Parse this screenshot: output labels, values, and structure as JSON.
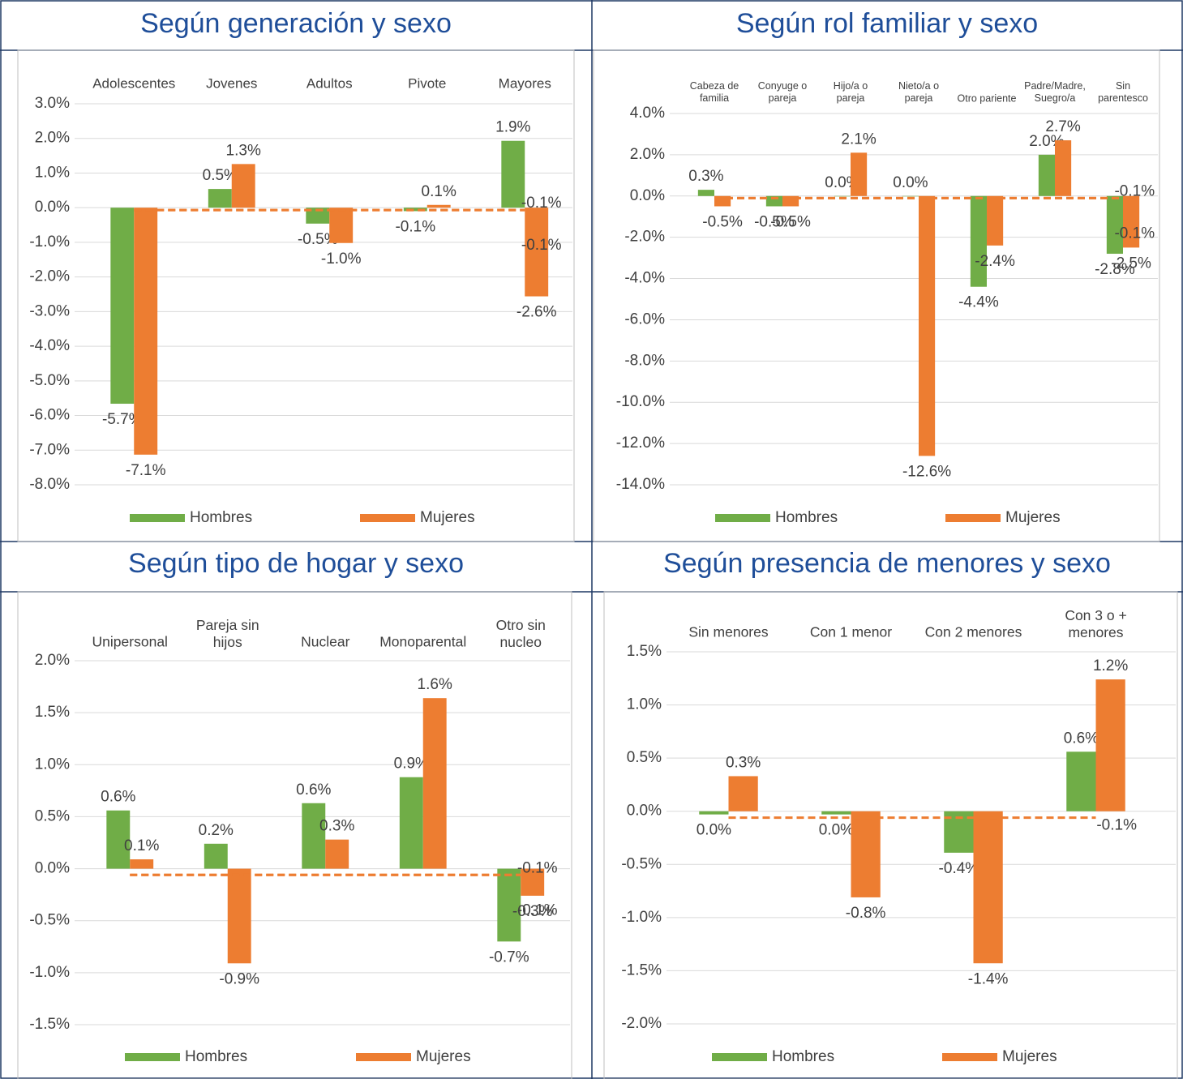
{
  "chart_data": [
    {
      "type": "bar",
      "title": "Según generación y sexo",
      "categories": [
        "Adolescentes",
        "Jovenes",
        "Adultos",
        "Pivote",
        "Mayores"
      ],
      "series": [
        {
          "name": "Hombres",
          "color": "#70ad47",
          "values": [
            -5.66,
            0.54,
            -0.46,
            -0.1,
            1.93
          ],
          "value_labels": [
            "-5.7%",
            "0.5%",
            "-0.5%",
            "-0.1%",
            "1.9%"
          ]
        },
        {
          "name": "Mujeres",
          "color": "#ed7d31",
          "values": [
            -7.13,
            1.26,
            -1.02,
            0.08,
            -2.56
          ],
          "value_labels": [
            "-7.1%",
            "1.3%",
            "-1.0%",
            "0.1%",
            "-2.6%"
          ]
        }
      ],
      "reference_lines": {
        "color": "#ed7d31",
        "values": [
          -0.07,
          -0.07
        ],
        "value_labels": [
          "-0.1%",
          "-0.1%"
        ]
      },
      "ylim": [
        -8,
        3
      ],
      "yticks": [
        {
          "value": 3,
          "label": "3.0%"
        },
        {
          "value": 2,
          "label": "2.0%"
        },
        {
          "value": 1,
          "label": "1.0%"
        },
        {
          "value": 0,
          "label": "0.0%"
        },
        {
          "value": -1,
          "label": "-1.0%"
        },
        {
          "value": -2,
          "label": "-2.0%"
        },
        {
          "value": -3,
          "label": "-3.0%"
        },
        {
          "value": -4,
          "label": "-4.0%"
        },
        {
          "value": -5,
          "label": "-5.0%"
        },
        {
          "value": -6,
          "label": "-6.0%"
        },
        {
          "value": -7,
          "label": "-7.0%"
        },
        {
          "value": -8,
          "label": "-8.0%"
        }
      ],
      "grid": true
    },
    {
      "type": "bar",
      "title": "Según rol familiar y sexo",
      "categories": [
        "Cabeza de\nfamilia",
        "Conyuge o\npareja",
        "Hijo/a o\npareja",
        "Nieto/a o\npareja",
        "Otro pariente",
        "Padre/Madre,\nSuegro/a",
        "Sin\nparentesco"
      ],
      "series": [
        {
          "name": "Hombres",
          "color": "#70ad47",
          "values": [
            0.3,
            -0.5,
            0.0,
            0.0,
            -4.4,
            2.0,
            -2.8
          ],
          "value_labels": [
            "0.3%",
            "-0.5%",
            "0.0%",
            "0.0%",
            "-4.4%",
            "2.0%",
            "-2.8%"
          ]
        },
        {
          "name": "Mujeres",
          "color": "#ed7d31",
          "values": [
            -0.5,
            -0.5,
            2.1,
            -12.6,
            -2.4,
            2.7,
            -2.5
          ],
          "value_labels": [
            "-0.5%",
            "-0.5%",
            "2.1%",
            "-12.6%",
            "-2.4%",
            "2.7%",
            "-2.5%"
          ]
        }
      ],
      "reference_lines": {
        "color": "#ed7d31",
        "values": [
          -0.1,
          -0.1
        ],
        "value_labels": [
          "-0.1%",
          "-0.1%"
        ]
      },
      "ylim": [
        -14,
        4
      ],
      "yticks": [
        {
          "value": 4,
          "label": "4.0%"
        },
        {
          "value": 2,
          "label": "2.0%"
        },
        {
          "value": 0,
          "label": "0.0%"
        },
        {
          "value": -2,
          "label": "-2.0%"
        },
        {
          "value": -4,
          "label": "-4.0%"
        },
        {
          "value": -6,
          "label": "-6.0%"
        },
        {
          "value": -8,
          "label": "-8.0%"
        },
        {
          "value": -10,
          "label": "-10.0%"
        },
        {
          "value": -12,
          "label": "-12.0%"
        },
        {
          "value": -14,
          "label": "-14.0%"
        }
      ],
      "grid": true
    },
    {
      "type": "bar",
      "title": "Según tipo de hogar y sexo",
      "categories": [
        "Unipersonal",
        "Pareja sin\nhijos",
        "Nuclear",
        "Monoparental",
        "Otro sin\nnucleo"
      ],
      "series": [
        {
          "name": "Hombres",
          "color": "#70ad47",
          "values": [
            0.56,
            0.24,
            0.63,
            0.88,
            -0.7
          ],
          "value_labels": [
            "0.6%",
            "0.2%",
            "0.6%",
            "0.9%",
            "-0.7%"
          ]
        },
        {
          "name": "Mujeres",
          "color": "#ed7d31",
          "values": [
            0.09,
            -0.91,
            0.28,
            1.64,
            -0.26
          ],
          "value_labels": [
            "0.1%",
            "-0.9%",
            "0.3%",
            "1.6%",
            "-0.3%"
          ]
        }
      ],
      "reference_lines": {
        "color": "#ed7d31",
        "values": [
          -0.06,
          -0.06
        ],
        "value_labels": [
          "-0.1%",
          "-0.1%"
        ]
      },
      "ylim": [
        -1.5,
        2
      ],
      "yticks": [
        {
          "value": 2,
          "label": "2.0%"
        },
        {
          "value": 1.5,
          "label": "1.5%"
        },
        {
          "value": 1,
          "label": "1.0%"
        },
        {
          "value": 0.5,
          "label": "0.5%"
        },
        {
          "value": 0,
          "label": "0.0%"
        },
        {
          "value": -0.5,
          "label": "-0.5%"
        },
        {
          "value": -1,
          "label": "-1.0%"
        },
        {
          "value": -1.5,
          "label": "-1.5%"
        }
      ],
      "grid": true
    },
    {
      "type": "bar",
      "title": "Según presencia de menores y sexo",
      "categories": [
        "Sin menores",
        "Con 1 menor",
        "Con 2 menores",
        "Con 3 o +\nmenores"
      ],
      "series": [
        {
          "name": "Hombres",
          "color": "#70ad47",
          "values": [
            -0.03,
            -0.03,
            -0.39,
            0.56
          ],
          "value_labels": [
            "0.0%",
            "0.0%",
            "-0.4%",
            "0.6%"
          ]
        },
        {
          "name": "Mujeres",
          "color": "#ed7d31",
          "values": [
            0.33,
            -0.81,
            -1.43,
            1.24
          ],
          "value_labels": [
            "0.3%",
            "-0.8%",
            "-1.4%",
            "1.2%"
          ]
        }
      ],
      "reference_lines": {
        "color": "#ed7d31",
        "values": [
          -0.06
        ],
        "value_labels": [
          "-0.1%"
        ]
      },
      "ylim": [
        -2,
        1.5
      ],
      "yticks": [
        {
          "value": 1.5,
          "label": "1.5%"
        },
        {
          "value": 1,
          "label": "1.0%"
        },
        {
          "value": 0.5,
          "label": "0.5%"
        },
        {
          "value": 0,
          "label": "0.0%"
        },
        {
          "value": -0.5,
          "label": "-0.5%"
        },
        {
          "value": -1,
          "label": "-1.0%"
        },
        {
          "value": -1.5,
          "label": "-1.5%"
        },
        {
          "value": -2,
          "label": "-2.0%"
        }
      ],
      "grid": true
    }
  ]
}
